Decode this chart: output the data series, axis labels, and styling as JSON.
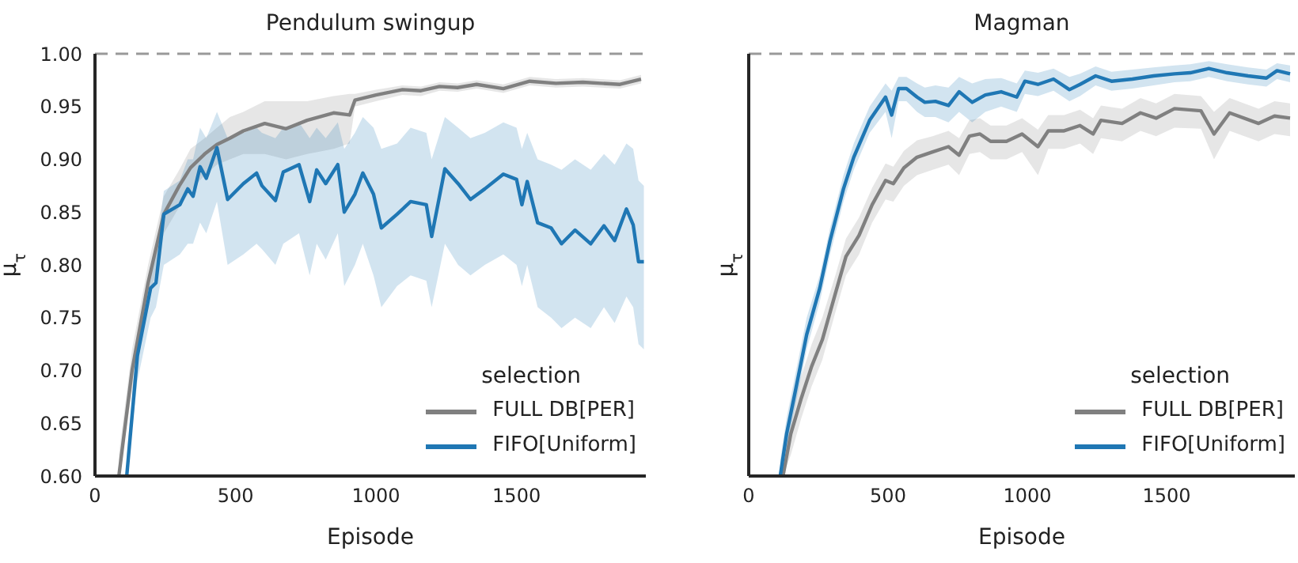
{
  "chart_data": [
    {
      "type": "line",
      "title": "Pendulum swingup",
      "xlabel": "Episode",
      "ylabel": "μ$_{τ}$",
      "legend_title": "selection",
      "legend": "bottom right",
      "marker": "none",
      "line_style": "solid",
      "xlim": [
        0,
        1960
      ],
      "xticks": [
        0,
        500,
        1000,
        1500
      ],
      "ylim": [
        0.6,
        1.0
      ],
      "yticks": [
        {
          "value": 0.6,
          "label": "0.60"
        },
        {
          "value": 0.65,
          "label": "0.65"
        },
        {
          "value": 0.7,
          "label": "0.70"
        },
        {
          "value": 0.75,
          "label": "0.75"
        },
        {
          "value": 0.8,
          "label": "0.80"
        },
        {
          "value": 0.85,
          "label": "0.85"
        },
        {
          "value": 0.9,
          "label": "0.90"
        },
        {
          "value": 0.95,
          "label": "0.95"
        },
        {
          "value": 1.0,
          "label": "1.00"
        }
      ],
      "ref_lines": [
        {
          "axis": "y",
          "value": 1.0,
          "color": "#999999",
          "line_style": "dashed"
        }
      ],
      "series": [
        {
          "name": "FULL DB[PER]",
          "color": "#808080",
          "x": [
            85,
            132,
            189,
            245,
            300,
            340,
            390,
            434,
            480,
            528,
            604,
            680,
            755,
            849,
            906,
            925,
            1000,
            1094,
            1160,
            1226,
            1290,
            1358,
            1453,
            1547,
            1640,
            1736,
            1800,
            1868,
            1943
          ],
          "values": [
            0.6,
            0.7,
            0.783,
            0.848,
            0.875,
            0.892,
            0.905,
            0.914,
            0.92,
            0.927,
            0.934,
            0.929,
            0.937,
            0.944,
            0.942,
            0.956,
            0.961,
            0.966,
            0.965,
            0.969,
            0.968,
            0.971,
            0.967,
            0.974,
            0.972,
            0.973,
            0.972,
            0.971,
            0.976
          ],
          "lower": [
            0.6,
            0.68,
            0.76,
            0.83,
            0.855,
            0.87,
            0.885,
            0.895,
            0.9,
            0.905,
            0.905,
            0.9,
            0.905,
            0.91,
            0.915,
            0.95,
            0.955,
            0.961,
            0.96,
            0.965,
            0.964,
            0.967,
            0.963,
            0.97,
            0.968,
            0.969,
            0.968,
            0.967,
            0.972
          ],
          "upper": [
            0.62,
            0.72,
            0.8,
            0.865,
            0.89,
            0.91,
            0.92,
            0.93,
            0.94,
            0.945,
            0.955,
            0.955,
            0.955,
            0.96,
            0.962,
            0.962,
            0.966,
            0.97,
            0.969,
            0.973,
            0.972,
            0.975,
            0.971,
            0.978,
            0.976,
            0.977,
            0.976,
            0.975,
            0.98
          ]
        },
        {
          "name": "FIFO[Uniform]",
          "color": "#1f77b4",
          "x": [
            113,
            151,
            198,
            217,
            245,
            302,
            330,
            349,
            374,
            396,
            434,
            472,
            528,
            575,
            594,
            642,
            670,
            726,
            764,
            789,
            821,
            864,
            887,
            925,
            953,
            991,
            1019,
            1075,
            1123,
            1179,
            1198,
            1245,
            1292,
            1336,
            1387,
            1453,
            1500,
            1519,
            1538,
            1575,
            1623,
            1660,
            1708,
            1764,
            1811,
            1849,
            1891,
            1915,
            1934,
            1953
          ],
          "values": [
            0.6,
            0.714,
            0.778,
            0.783,
            0.848,
            0.857,
            0.872,
            0.865,
            0.893,
            0.882,
            0.911,
            0.862,
            0.877,
            0.887,
            0.875,
            0.861,
            0.888,
            0.895,
            0.86,
            0.89,
            0.877,
            0.895,
            0.85,
            0.867,
            0.887,
            0.867,
            0.835,
            0.848,
            0.86,
            0.857,
            0.827,
            0.891,
            0.877,
            0.862,
            0.872,
            0.886,
            0.881,
            0.857,
            0.879,
            0.84,
            0.835,
            0.82,
            0.833,
            0.82,
            0.837,
            0.823,
            0.853,
            0.838,
            0.803,
            0.803
          ],
          "lower": [
            0.6,
            0.69,
            0.75,
            0.76,
            0.8,
            0.81,
            0.82,
            0.82,
            0.84,
            0.83,
            0.86,
            0.8,
            0.81,
            0.82,
            0.815,
            0.8,
            0.82,
            0.83,
            0.79,
            0.82,
            0.805,
            0.83,
            0.78,
            0.8,
            0.82,
            0.79,
            0.76,
            0.78,
            0.79,
            0.785,
            0.76,
            0.82,
            0.8,
            0.79,
            0.8,
            0.81,
            0.8,
            0.78,
            0.8,
            0.76,
            0.75,
            0.74,
            0.75,
            0.74,
            0.76,
            0.745,
            0.77,
            0.76,
            0.725,
            0.72
          ],
          "upper": [
            0.62,
            0.73,
            0.8,
            0.81,
            0.87,
            0.88,
            0.9,
            0.9,
            0.93,
            0.92,
            0.945,
            0.92,
            0.925,
            0.93,
            0.925,
            0.92,
            0.93,
            0.935,
            0.92,
            0.93,
            0.92,
            0.935,
            0.91,
            0.925,
            0.94,
            0.93,
            0.91,
            0.915,
            0.93,
            0.925,
            0.9,
            0.94,
            0.93,
            0.92,
            0.925,
            0.935,
            0.93,
            0.91,
            0.925,
            0.9,
            0.895,
            0.89,
            0.9,
            0.89,
            0.905,
            0.895,
            0.915,
            0.91,
            0.88,
            0.875
          ]
        }
      ]
    },
    {
      "type": "line",
      "title": "Magman",
      "xlabel": "Episode",
      "ylabel": "μ$_{τ}$",
      "legend_title": "selection",
      "legend": "bottom right",
      "marker": "none",
      "line_style": "solid",
      "tick_labels": "x",
      "xlim": [
        0,
        1960
      ],
      "xticks": [
        0,
        500,
        1000,
        1500
      ],
      "ylim": [
        0.6,
        1.0
      ],
      "ref_lines": [
        {
          "axis": "y",
          "value": 1.0,
          "color": "#999999",
          "line_style": "dashed"
        }
      ],
      "series": [
        {
          "name": "FULL DB[PER]",
          "color": "#808080",
          "x": [
            123,
            151,
            189,
            226,
            264,
            311,
            349,
            396,
            443,
            491,
            519,
            557,
            604,
            660,
            717,
            755,
            792,
            830,
            868,
            925,
            981,
            1038,
            1075,
            1132,
            1189,
            1236,
            1264,
            1340,
            1406,
            1462,
            1528,
            1623,
            1670,
            1726,
            1830,
            1887,
            1943
          ],
          "values": [
            0.6,
            0.64,
            0.674,
            0.704,
            0.729,
            0.773,
            0.808,
            0.828,
            0.857,
            0.88,
            0.877,
            0.892,
            0.902,
            0.907,
            0.912,
            0.904,
            0.922,
            0.924,
            0.917,
            0.917,
            0.924,
            0.912,
            0.927,
            0.927,
            0.932,
            0.924,
            0.937,
            0.934,
            0.944,
            0.939,
            0.948,
            0.946,
            0.924,
            0.944,
            0.934,
            0.941,
            0.939
          ],
          "lower": [
            0.6,
            0.62,
            0.655,
            0.685,
            0.71,
            0.755,
            0.79,
            0.81,
            0.84,
            0.862,
            0.86,
            0.875,
            0.885,
            0.89,
            0.895,
            0.885,
            0.905,
            0.907,
            0.9,
            0.9,
            0.907,
            0.885,
            0.91,
            0.91,
            0.915,
            0.905,
            0.92,
            0.917,
            0.927,
            0.922,
            0.93,
            0.929,
            0.9,
            0.927,
            0.917,
            0.924,
            0.922
          ],
          "upper": [
            0.62,
            0.66,
            0.695,
            0.725,
            0.75,
            0.79,
            0.825,
            0.845,
            0.873,
            0.896,
            0.893,
            0.908,
            0.918,
            0.922,
            0.927,
            0.92,
            0.937,
            0.939,
            0.932,
            0.932,
            0.939,
            0.928,
            0.942,
            0.942,
            0.947,
            0.939,
            0.951,
            0.948,
            0.958,
            0.953,
            0.962,
            0.96,
            0.945,
            0.958,
            0.948,
            0.955,
            0.953
          ]
        },
        {
          "name": "FIFO[Uniform]",
          "color": "#1f77b4",
          "x": [
            113,
            136,
            170,
            208,
            255,
            292,
            340,
            377,
            434,
            491,
            513,
            538,
            566,
            604,
            632,
            670,
            717,
            755,
            802,
            849,
            906,
            962,
            991,
            1038,
            1094,
            1151,
            1189,
            1245,
            1302,
            1377,
            1453,
            1528,
            1585,
            1651,
            1717,
            1792,
            1858,
            1896,
            1943
          ],
          "values": [
            0.6,
            0.64,
            0.684,
            0.734,
            0.778,
            0.823,
            0.872,
            0.902,
            0.937,
            0.959,
            0.942,
            0.967,
            0.967,
            0.959,
            0.954,
            0.955,
            0.951,
            0.964,
            0.954,
            0.961,
            0.964,
            0.959,
            0.974,
            0.971,
            0.976,
            0.966,
            0.971,
            0.979,
            0.974,
            0.976,
            0.979,
            0.981,
            0.982,
            0.986,
            0.982,
            0.979,
            0.977,
            0.984,
            0.981
          ],
          "lower": [
            0.6,
            0.625,
            0.67,
            0.72,
            0.765,
            0.81,
            0.86,
            0.89,
            0.925,
            0.945,
            0.92,
            0.955,
            0.955,
            0.945,
            0.94,
            0.94,
            0.935,
            0.945,
            0.935,
            0.945,
            0.95,
            0.945,
            0.962,
            0.96,
            0.965,
            0.955,
            0.96,
            0.97,
            0.965,
            0.967,
            0.97,
            0.973,
            0.974,
            0.978,
            0.974,
            0.971,
            0.969,
            0.976,
            0.973
          ],
          "upper": [
            0.615,
            0.655,
            0.7,
            0.75,
            0.79,
            0.835,
            0.885,
            0.915,
            0.95,
            0.972,
            0.965,
            0.978,
            0.978,
            0.972,
            0.968,
            0.97,
            0.968,
            0.978,
            0.972,
            0.976,
            0.977,
            0.972,
            0.984,
            0.982,
            0.986,
            0.978,
            0.981,
            0.988,
            0.983,
            0.985,
            0.987,
            0.989,
            0.99,
            0.993,
            0.99,
            0.987,
            0.985,
            0.991,
            0.989
          ]
        }
      ]
    }
  ]
}
